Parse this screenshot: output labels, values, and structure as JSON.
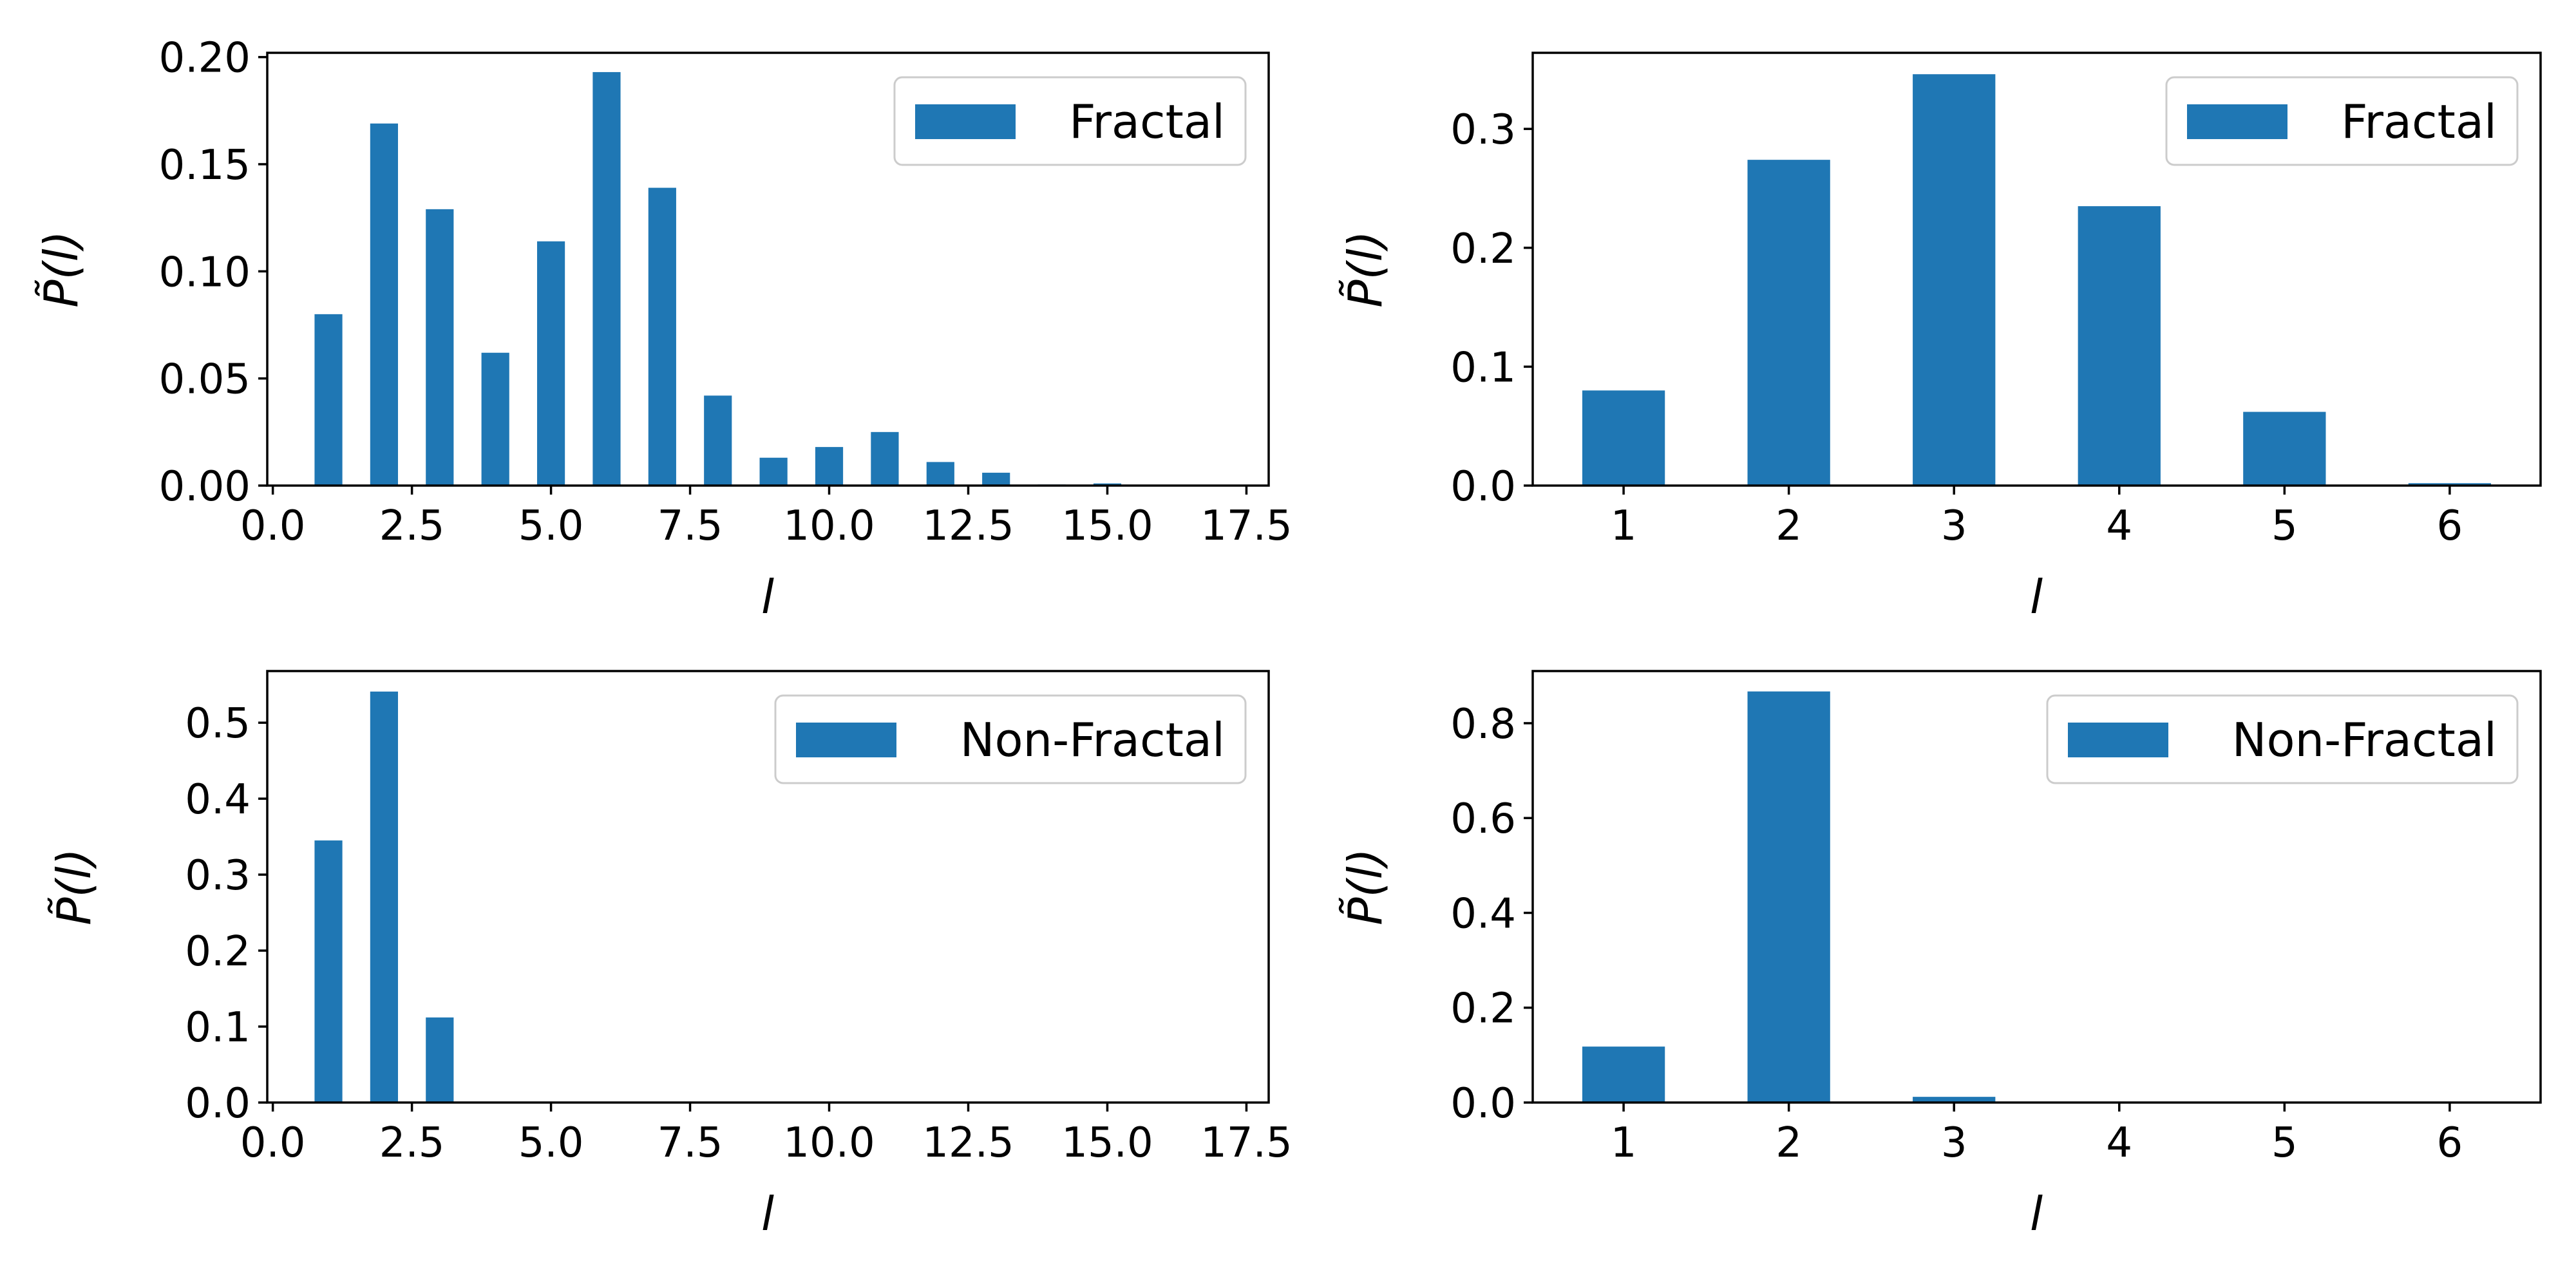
{
  "colors": {
    "bar": "#1f77b4",
    "axis": "#000000",
    "legend_border": "#cccccc"
  },
  "chart_data": [
    {
      "type": "bar",
      "x": [
        1,
        2,
        3,
        4,
        5,
        6,
        7,
        8,
        9,
        10,
        11,
        12,
        13,
        14,
        15,
        16,
        17
      ],
      "values": [
        0.08,
        0.169,
        0.129,
        0.062,
        0.114,
        0.193,
        0.139,
        0.042,
        0.013,
        0.018,
        0.025,
        0.011,
        0.006,
        0.0005,
        0.001,
        0.0003,
        0.0002
      ],
      "series": [
        {
          "name": "Fractal"
        }
      ],
      "xlim": [
        -0.1,
        17.9
      ],
      "ylim": [
        0,
        0.202
      ],
      "xticks": [
        0.0,
        2.5,
        5.0,
        7.5,
        10.0,
        12.5,
        15.0,
        17.5
      ],
      "xtick_labels": [
        "0.0",
        "2.5",
        "5.0",
        "7.5",
        "10.0",
        "12.5",
        "15.0",
        "17.5"
      ],
      "yticks": [
        0.0,
        0.05,
        0.1,
        0.15,
        0.2
      ],
      "ytick_labels": [
        "0.00",
        "0.05",
        "0.10",
        "0.15",
        "0.20"
      ],
      "xlabel": "l",
      "ylabel": "P̃(l)",
      "legend": "upper right",
      "grid": false
    },
    {
      "type": "bar",
      "x": [
        1,
        2,
        3,
        4,
        5,
        6
      ],
      "values": [
        0.08,
        0.274,
        0.346,
        0.235,
        0.062,
        0.002
      ],
      "series": [
        {
          "name": "Fractal"
        }
      ],
      "xlim": [
        0.45,
        6.55
      ],
      "ylim": [
        0,
        0.364
      ],
      "xticks": [
        1,
        2,
        3,
        4,
        5,
        6
      ],
      "xtick_labels": [
        "1",
        "2",
        "3",
        "4",
        "5",
        "6"
      ],
      "yticks": [
        0.0,
        0.1,
        0.2,
        0.3
      ],
      "ytick_labels": [
        "0.0",
        "0.1",
        "0.2",
        "0.3"
      ],
      "xlabel": "l",
      "ylabel": "P̃(l)",
      "legend": "upper right",
      "grid": false
    },
    {
      "type": "bar",
      "x": [
        1,
        2,
        3
      ],
      "values": [
        0.345,
        0.541,
        0.112
      ],
      "series": [
        {
          "name": "Non-Fractal"
        }
      ],
      "xlim": [
        -0.1,
        17.9
      ],
      "ylim": [
        0,
        0.568
      ],
      "xticks": [
        0.0,
        2.5,
        5.0,
        7.5,
        10.0,
        12.5,
        15.0,
        17.5
      ],
      "xtick_labels": [
        "0.0",
        "2.5",
        "5.0",
        "7.5",
        "10.0",
        "12.5",
        "15.0",
        "17.5"
      ],
      "yticks": [
        0.0,
        0.1,
        0.2,
        0.3,
        0.4,
        0.5
      ],
      "ytick_labels": [
        "0.0",
        "0.1",
        "0.2",
        "0.3",
        "0.4",
        "0.5"
      ],
      "xlabel": "l",
      "ylabel": "P̃(l)",
      "legend": "upper right",
      "grid": false
    },
    {
      "type": "bar",
      "x": [
        1,
        2,
        3,
        4,
        5,
        6
      ],
      "values": [
        0.118,
        0.867,
        0.012,
        0.0,
        0.0,
        0.0
      ],
      "series": [
        {
          "name": "Non-Fractal"
        }
      ],
      "xlim": [
        0.45,
        6.55
      ],
      "ylim": [
        0,
        0.91
      ],
      "xticks": [
        1,
        2,
        3,
        4,
        5,
        6
      ],
      "xtick_labels": [
        "1",
        "2",
        "3",
        "4",
        "5",
        "6"
      ],
      "yticks": [
        0.0,
        0.2,
        0.4,
        0.6,
        0.8
      ],
      "ytick_labels": [
        "0.0",
        "0.2",
        "0.4",
        "0.6",
        "0.8"
      ],
      "xlabel": "l",
      "ylabel": "P̃(l)",
      "legend": "upper right",
      "grid": false
    }
  ]
}
